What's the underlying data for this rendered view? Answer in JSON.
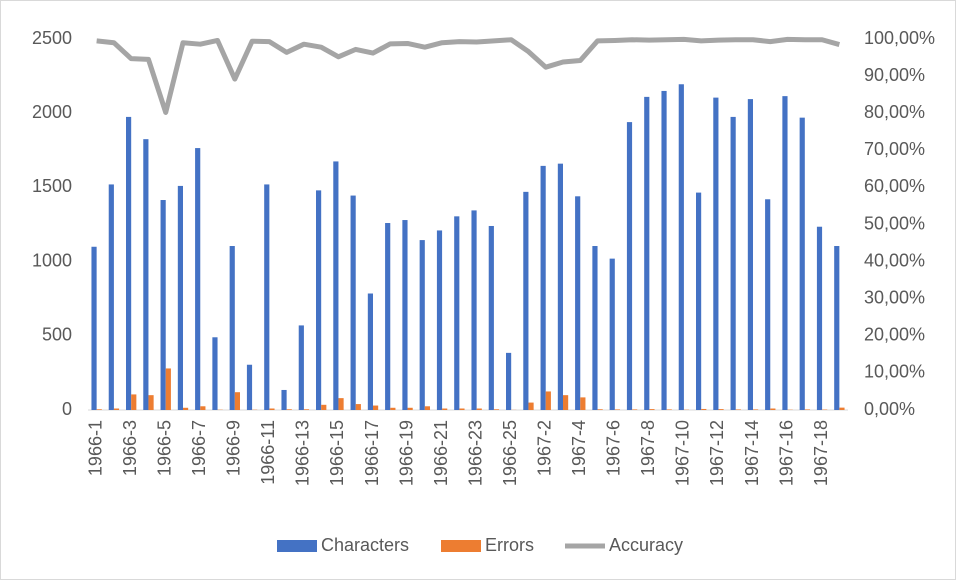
{
  "chart_data": {
    "type": "combo",
    "categories": [
      "1966-1",
      null,
      "1966-3",
      null,
      "1966-5",
      null,
      "1966-7",
      null,
      "1966-9",
      null,
      "1966-11",
      null,
      "1966-13",
      null,
      "1966-15",
      null,
      "1966-17",
      null,
      "1966-19",
      null,
      "1966-21",
      null,
      "1966-23",
      null,
      "1966-25",
      null,
      "1967-2",
      null,
      "1967-4",
      null,
      "1967-6",
      null,
      "1967-8",
      null,
      "1967-10",
      null,
      "1967-12",
      null,
      "1967-14",
      null,
      "1967-16",
      null,
      "1967-18",
      null
    ],
    "series": [
      {
        "name": "Characters",
        "color": "#4472c4",
        "kind": "bar",
        "values": [
          1100,
          1520,
          1975,
          1825,
          1415,
          1510,
          1765,
          490,
          1105,
          305,
          1520,
          135,
          570,
          1480,
          1675,
          1445,
          785,
          1260,
          1280,
          1145,
          1210,
          1305,
          1345,
          1240,
          385,
          1470,
          1645,
          1660,
          1440,
          1105,
          1020,
          1940,
          2110,
          2150,
          2195,
          1465,
          2105,
          1975,
          2095,
          1420,
          2115,
          1970,
          1235,
          1105
        ]
      },
      {
        "name": "Errors",
        "color": "#ed7d31",
        "kind": "bar",
        "values": [
          5,
          10,
          105,
          100,
          280,
          15,
          25,
          2,
          120,
          2,
          10,
          5,
          5,
          35,
          80,
          40,
          30,
          15,
          15,
          25,
          10,
          10,
          10,
          5,
          1,
          50,
          125,
          100,
          85,
          5,
          4,
          4,
          6,
          4,
          2,
          7,
          6,
          4,
          4,
          10,
          2,
          4,
          3,
          16
        ]
      },
      {
        "name": "Accuracy",
        "color": "#a5a5a5",
        "kind": "line",
        "axis": "y2",
        "values": [
          99.5,
          99.0,
          94.7,
          94.5,
          80.2,
          99.0,
          98.6,
          99.6,
          89.2,
          99.4,
          99.3,
          96.4,
          98.6,
          97.8,
          95.2,
          97.2,
          96.2,
          98.7,
          98.8,
          97.8,
          99.0,
          99.3,
          99.2,
          99.5,
          99.8,
          96.6,
          92.4,
          93.8,
          94.2,
          99.5,
          99.6,
          99.8,
          99.7,
          99.8,
          99.9,
          99.5,
          99.7,
          99.8,
          99.8,
          99.3,
          99.9,
          99.8,
          99.8,
          98.5
        ]
      }
    ],
    "ylim": [
      0,
      2500
    ],
    "yticks": [
      0,
      500,
      1000,
      1500,
      2000,
      2500
    ],
    "y2lim": [
      0,
      100
    ],
    "y2ticks": [
      {
        "value": 0,
        "label": "0,00%"
      },
      {
        "value": 10,
        "label": "10,00%"
      },
      {
        "value": 20,
        "label": "20,00%"
      },
      {
        "value": 30,
        "label": "30,00%"
      },
      {
        "value": 40,
        "label": "40,00%"
      },
      {
        "value": 50,
        "label": "50,00%"
      },
      {
        "value": 60,
        "label": "60,00%"
      },
      {
        "value": 70,
        "label": "70,00%"
      },
      {
        "value": 80,
        "label": "80,00%"
      },
      {
        "value": 90,
        "label": "90,00%"
      },
      {
        "value": 100,
        "label": "100,00%"
      }
    ],
    "grid": false,
    "legend": "bottom"
  }
}
